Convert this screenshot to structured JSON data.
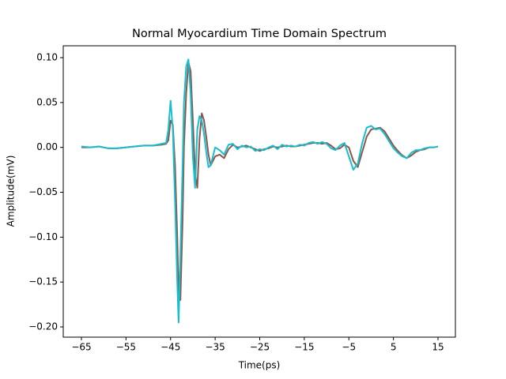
{
  "chart_data": {
    "type": "line",
    "title": "Normal Myocardium Time Domain Spectrum",
    "x_label": "Time(ps)",
    "y_label": "Amplitude(mV)",
    "x": [
      -65,
      -63,
      -61,
      -59,
      -57,
      -55,
      -53,
      -51,
      -49,
      -47,
      -46,
      -45.5,
      -45,
      -44.5,
      -44,
      -43.5,
      -43.2,
      -42.8,
      -42.3,
      -42,
      -41.5,
      -41,
      -40.5,
      -40,
      -39.5,
      -39,
      -38.5,
      -38,
      -37.5,
      -37,
      -36.5,
      -36,
      -35,
      -34,
      -33,
      -32,
      -31,
      -30,
      -29,
      -28,
      -27,
      -26,
      -25,
      -24,
      -23,
      -22,
      -21,
      -20,
      -19,
      -18,
      -17,
      -16,
      -15,
      -14,
      -13,
      -12,
      -11,
      -10,
      -9,
      -8,
      -7,
      -6,
      -5,
      -4,
      -3,
      -2,
      -1,
      0,
      1,
      2,
      3,
      4,
      5,
      6,
      7,
      8,
      9,
      10,
      11,
      12,
      13,
      14,
      15
    ],
    "series": [
      {
        "color": "#8c564b",
        "values": [
          0,
          0,
          0.001,
          -0.001,
          -0.001,
          0,
          0.001,
          0.002,
          0.002,
          0.003,
          0.004,
          0.008,
          0.03,
          0.025,
          -0.02,
          -0.1,
          -0.16,
          -0.17,
          -0.08,
          0,
          0.06,
          0.095,
          0.085,
          0.03,
          -0.03,
          -0.045,
          0.01,
          0.038,
          0.03,
          0.012,
          -0.008,
          -0.02,
          -0.01,
          -0.008,
          -0.012,
          -0.002,
          0.003,
          0,
          0.001,
          0.002,
          0,
          -0.002,
          -0.004,
          -0.002,
          -0.001,
          0.001,
          0,
          0.001,
          0.002,
          0.001,
          0.001,
          0.002,
          0.003,
          0.004,
          0.005,
          0.005,
          0.004,
          0.005,
          0.002,
          -0.002,
          -0.001,
          0.003,
          0,
          -0.015,
          -0.022,
          -0.005,
          0.012,
          0.02,
          0.021,
          0.022,
          0.018,
          0.01,
          0.002,
          -0.004,
          -0.009,
          -0.012,
          -0.009,
          -0.005,
          -0.003,
          -0.002,
          0,
          0,
          0.001
        ]
      },
      {
        "color": "#17becf",
        "values": [
          0.001,
          0,
          0.001,
          -0.001,
          -0.001,
          0,
          0.001,
          0.002,
          0.002,
          0.004,
          0.005,
          0.02,
          0.052,
          0.02,
          -0.06,
          -0.15,
          -0.195,
          -0.12,
          -0.02,
          0.05,
          0.09,
          0.098,
          0.06,
          -0.01,
          -0.045,
          0.02,
          0.035,
          0.03,
          0.015,
          -0.005,
          -0.022,
          -0.02,
          0,
          -0.003,
          -0.008,
          0.003,
          0.004,
          -0.002,
          0.002,
          0,
          0.001,
          -0.004,
          -0.002,
          -0.003,
          0,
          0.002,
          -0.002,
          0.003,
          0.001,
          0.002,
          0.001,
          0.003,
          0.002,
          0.005,
          0.006,
          0.004,
          0.006,
          0.004,
          -0.001,
          -0.003,
          0.002,
          0.005,
          -0.01,
          -0.025,
          -0.018,
          0.005,
          0.022,
          0.024,
          0.02,
          0.021,
          0.015,
          0.007,
          -0.001,
          -0.006,
          -0.01,
          -0.012,
          -0.006,
          -0.003,
          -0.003,
          -0.001,
          0,
          0,
          0.001
        ]
      }
    ],
    "xlim": [
      -69.08,
      18.9
    ],
    "ylim": [
      -0.2114,
      0.1132
    ],
    "xticks": [
      {
        "value": -65,
        "label": "−65"
      },
      {
        "value": -55,
        "label": "−55"
      },
      {
        "value": -45,
        "label": "−45"
      },
      {
        "value": -35,
        "label": "−35"
      },
      {
        "value": -25,
        "label": "−25"
      },
      {
        "value": -15,
        "label": "−15"
      },
      {
        "value": -5,
        "label": "−5"
      },
      5,
      15
    ],
    "yticks": [
      {
        "value": -0.2,
        "label": "−0.20"
      },
      {
        "value": -0.15,
        "label": "−0.15"
      },
      {
        "value": -0.1,
        "label": "−0.10"
      },
      {
        "value": -0.05,
        "label": "−0.05"
      },
      {
        "value": 0,
        "label": "0.00"
      },
      {
        "value": 0.05,
        "label": "0.05"
      },
      {
        "value": 0.1,
        "label": "0.10"
      }
    ],
    "grid": false
  }
}
